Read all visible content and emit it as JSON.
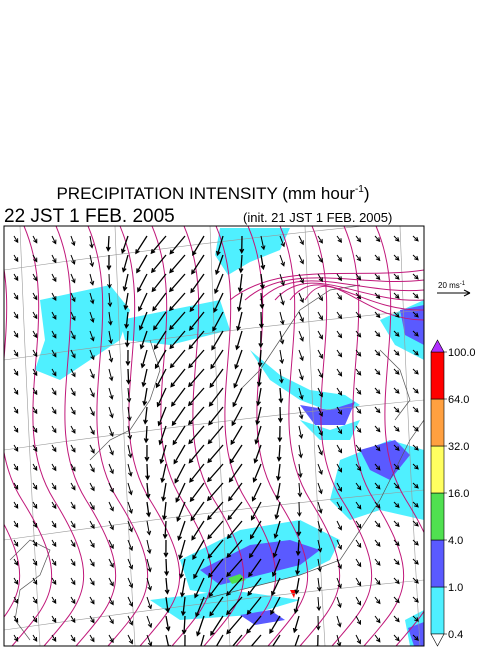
{
  "header": {
    "title": {
      "main": "PRECIPITATION INTENSITY (mm hour",
      "sup": "-1",
      "close": ")"
    },
    "valid_time": "22 JST 1 FEB. 2005",
    "init_time": "(init. 21 JST 1 FEB. 2005)"
  },
  "vector_key": {
    "main": "20 ms",
    "sup": "-1"
  },
  "colorbar": {
    "levels": [
      {
        "value": 0.4,
        "label": "0.4"
      },
      {
        "value": 1,
        "label": "1.0"
      },
      {
        "value": 4,
        "label": "4.0"
      },
      {
        "value": 16,
        "label": "16.0"
      },
      {
        "value": 32,
        "label": "32.0"
      },
      {
        "value": 64,
        "label": "64.0"
      },
      {
        "value": 100,
        "label": "100.0"
      }
    ],
    "colors": [
      "#4ff0ff",
      "#5a5aff",
      "#50e050",
      "#ffff60",
      "#ffa040",
      "#ff0000"
    ],
    "under_color": "#ffffff",
    "over_color": "#b030ff"
  }
}
